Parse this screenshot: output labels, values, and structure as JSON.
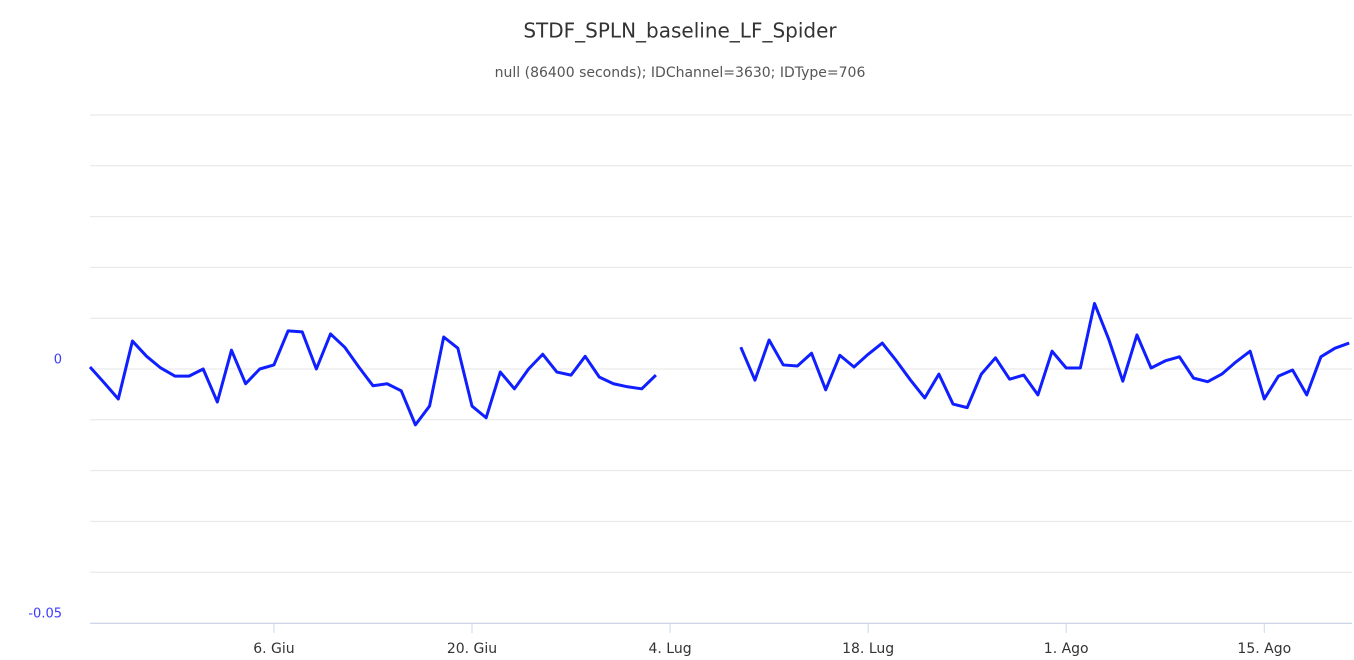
{
  "chart_data": {
    "type": "line",
    "title": "STDF_SPLN_baseline_LF_Spider",
    "subtitle": "null (86400 seconds); IDChannel=3630; IDType=706",
    "color": "#0f1fff",
    "x": [
      0,
      1,
      2,
      3,
      4,
      5,
      6,
      7,
      8,
      9,
      10,
      11,
      12,
      13,
      14,
      15,
      16,
      17,
      18,
      19,
      20,
      21,
      22,
      23,
      24,
      25,
      26,
      27,
      28,
      29,
      30,
      31,
      32,
      33,
      34,
      35,
      36,
      37,
      38,
      39,
      40,
      41,
      42,
      43,
      44,
      45,
      46,
      47,
      48,
      49,
      50,
      51,
      52,
      53,
      54,
      55,
      56,
      57,
      58,
      59,
      60,
      61,
      62,
      63,
      64,
      65,
      66,
      67,
      68,
      69,
      70,
      71,
      72,
      73,
      74,
      75,
      76,
      77,
      78,
      79,
      80,
      81,
      82,
      83,
      84,
      85,
      86,
      87,
      88,
      89
    ],
    "values": [
      0.0004,
      -0.0027,
      -0.0059,
      0.0055,
      0.0025,
      0.0002,
      -0.0014,
      -0.0014,
      0,
      -0.0065,
      0.0037,
      -0.0029,
      0,
      0.0008,
      0.0075,
      0.0073,
      0,
      0.0069,
      0.0043,
      0.0004,
      -0.0033,
      -0.0029,
      -0.0043,
      -0.011,
      -0.0073,
      0.0063,
      0.0041,
      -0.0073,
      -0.0096,
      -0.0006,
      -0.0039,
      0,
      0.0029,
      -0.0006,
      -0.0012,
      0.0025,
      -0.0016,
      -0.0029,
      -0.0035,
      -0.0039,
      -0.0012,
      null,
      null,
      null,
      null,
      null,
      0.0043,
      -0.0022,
      0.0057,
      0.0008,
      0.0006,
      0.0031,
      -0.0041,
      0.0027,
      0.0004,
      0.0029,
      0.0051,
      0.0016,
      -0.0022,
      -0.0057,
      -0.001,
      -0.0069,
      -0.0076,
      -0.001,
      0.0022,
      -0.002,
      -0.0012,
      -0.0051,
      0.0035,
      0.0002,
      0.0002,
      0.0129,
      0.0059,
      -0.0024,
      0.0067,
      0.0002,
      0.0016,
      0.0024,
      -0.0018,
      -0.0025,
      -0.001,
      0.0014,
      0.0035,
      -0.0059,
      -0.0014,
      -0.0002,
      -0.0051,
      0.0024,
      0.0041,
      0.0051
    ],
    "xlim": [
      0,
      89.2
    ],
    "xticks": [
      {
        "value": 13,
        "label": "6. Giu"
      },
      {
        "value": 27,
        "label": "20. Giu"
      },
      {
        "value": 41,
        "label": "4. Lug"
      },
      {
        "value": 55,
        "label": "18. Lug"
      },
      {
        "value": 69,
        "label": "1. Ago"
      },
      {
        "value": 83,
        "label": "15. Ago"
      }
    ],
    "ylim": [
      -0.05,
      0.05
    ],
    "yticks": [
      -0.05,
      0
    ],
    "ygrid": [
      -0.05,
      -0.04,
      -0.03,
      -0.02,
      -0.01,
      0,
      0.01,
      0.02,
      0.03,
      0.04,
      0.05
    ],
    "grid": true
  }
}
